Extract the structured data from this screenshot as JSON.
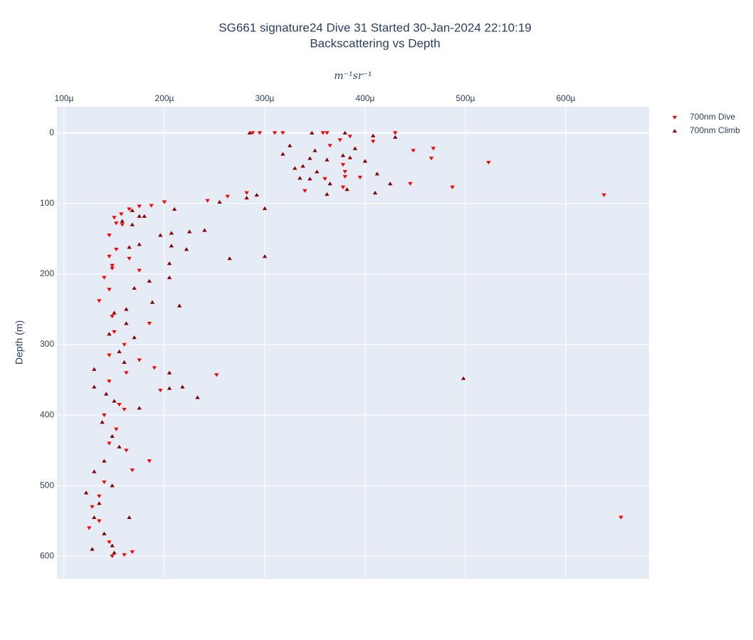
{
  "chart_data": {
    "type": "scatter",
    "title": "SG661 signature24 Dive 31 Started 30-Jan-2024 22:10:19",
    "subtitle": "Backscattering vs Depth",
    "x_label": "m⁻¹sr⁻¹",
    "y_label": "Depth (m)",
    "xlim": [
      9.29e-05,
      0.000683
    ],
    "xticks": [
      {
        "value": 0.0001,
        "label": "100µ"
      },
      {
        "value": 0.0002,
        "label": "200µ"
      },
      {
        "value": 0.0003,
        "label": "300µ"
      },
      {
        "value": 0.0004,
        "label": "400µ"
      },
      {
        "value": 0.0005,
        "label": "500µ"
      },
      {
        "value": 0.0006,
        "label": "600µ"
      }
    ],
    "ylim": [
      -37,
      632
    ],
    "yticks": [
      0,
      100,
      200,
      300,
      400,
      500,
      600
    ],
    "y_reversed": true,
    "x_axis_side": "top",
    "grid": true,
    "legend": "outside-right",
    "series": [
      {
        "name": "700nm Dive",
        "color": "#ff0000",
        "marker": "triangle-down",
        "x": [
          0.000288,
          0.000295,
          0.00031,
          0.000318,
          0.000358,
          0.000362,
          0.000385,
          0.000408,
          0.00043,
          0.000448,
          0.000468,
          0.000466,
          0.000523,
          0.000375,
          0.000365,
          0.000378,
          0.00038,
          0.00038,
          0.000395,
          0.000378,
          0.00034,
          0.000445,
          0.000487,
          0.000638,
          0.00036,
          0.000282,
          0.000263,
          0.000243,
          0.0002,
          0.000187,
          0.000175,
          0.000165,
          0.000157,
          0.00015,
          0.000152,
          0.000145,
          0.000158,
          0.000152,
          0.000145,
          0.000148,
          0.000165,
          0.000148,
          0.000175,
          0.00014,
          0.000145,
          0.000135,
          0.000148,
          0.000185,
          0.00015,
          0.00016,
          0.000145,
          0.000175,
          0.00019,
          0.000162,
          0.000252,
          0.000145,
          0.000196,
          0.000155,
          0.00016,
          0.00014,
          0.000152,
          0.000145,
          0.000162,
          0.000185,
          0.000168,
          0.00014,
          0.000135,
          0.000128,
          0.000125,
          0.000145,
          0.000168,
          0.00016,
          0.000655,
          0.000148,
          0.000135
        ],
        "values": [
          0,
          0,
          0,
          0,
          0,
          0,
          5,
          12,
          0,
          25,
          22,
          36,
          42,
          10,
          18,
          45,
          55,
          62,
          63,
          77,
          82,
          72,
          77,
          88,
          65,
          85,
          90,
          96,
          98,
          103,
          104,
          108,
          115,
          120,
          128,
          145,
          130,
          165,
          175,
          188,
          178,
          192,
          195,
          205,
          222,
          238,
          260,
          270,
          282,
          300,
          315,
          322,
          333,
          340,
          343,
          352,
          365,
          385,
          392,
          400,
          420,
          440,
          450,
          465,
          478,
          495,
          515,
          530,
          560,
          580,
          594,
          598,
          545,
          600,
          550
        ]
      },
      {
        "name": "700nm Climb",
        "color": "#8b0000",
        "marker": "triangle-up",
        "x": [
          0.000285,
          0.000347,
          0.00038,
          0.000408,
          0.00043,
          0.000325,
          0.000318,
          0.00035,
          0.000378,
          0.00039,
          0.000385,
          0.000345,
          0.000362,
          0.0004,
          0.000338,
          0.00033,
          0.000352,
          0.000335,
          0.000412,
          0.000345,
          0.000365,
          0.000425,
          0.00041,
          0.000382,
          0.000362,
          0.000292,
          0.000282,
          0.000255,
          0.0003,
          0.00021,
          0.00018,
          0.000168,
          0.000158,
          0.000168,
          0.000175,
          0.000225,
          0.00024,
          0.000207,
          0.000222,
          0.000207,
          0.000196,
          0.000175,
          0.000165,
          0.000265,
          0.0003,
          0.000205,
          0.000205,
          0.000185,
          0.00017,
          0.000188,
          0.000215,
          0.000162,
          0.00015,
          0.000162,
          0.000145,
          0.00017,
          0.000155,
          0.00016,
          0.00013,
          0.000205,
          0.000218,
          0.000233,
          0.000205,
          0.000498,
          0.00013,
          0.000142,
          0.00015,
          0.000175,
          0.000138,
          0.000148,
          0.000155,
          0.00014,
          0.00013,
          0.000148,
          0.000122,
          0.000135,
          0.00013,
          0.000165,
          0.00014,
          0.000148,
          0.000128,
          0.00015
        ],
        "values": [
          0,
          0,
          0,
          4,
          6,
          18,
          30,
          25,
          32,
          22,
          35,
          36,
          38,
          40,
          47,
          50,
          55,
          64,
          58,
          65,
          72,
          72,
          85,
          80,
          87,
          88,
          92,
          98,
          107,
          108,
          118,
          110,
          125,
          130,
          118,
          140,
          138,
          142,
          165,
          160,
          145,
          158,
          162,
          178,
          175,
          185,
          205,
          210,
          220,
          240,
          245,
          250,
          255,
          270,
          285,
          290,
          310,
          325,
          335,
          340,
          360,
          375,
          362,
          348,
          360,
          370,
          380,
          390,
          410,
          430,
          445,
          465,
          480,
          500,
          510,
          525,
          545,
          545,
          568,
          585,
          590,
          595
        ]
      }
    ]
  }
}
